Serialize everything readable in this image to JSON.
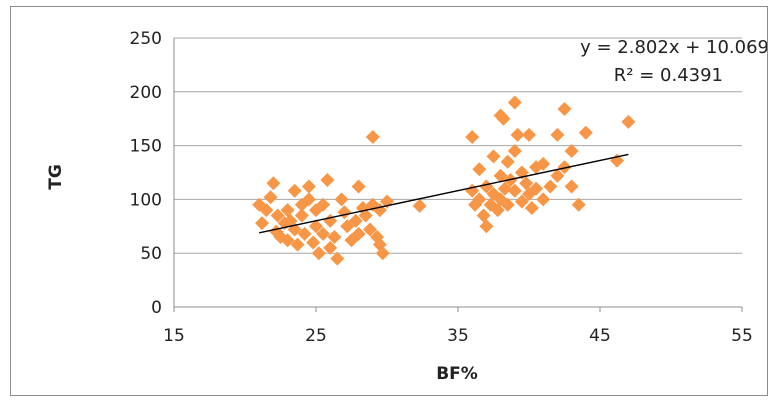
{
  "chart_data": {
    "type": "scatter",
    "xlabel": "BF%",
    "ylabel": "TG",
    "xlim": [
      15,
      55
    ],
    "ylim": [
      0,
      250
    ],
    "x_ticks": [
      "15",
      "25",
      "35",
      "45",
      "55"
    ],
    "y_ticks": [
      "0",
      "50",
      "100",
      "150",
      "200",
      "250"
    ],
    "grid": "horizontal",
    "marker_color": "#F79646",
    "trendline": {
      "slope": 2.802,
      "intercept": 10.069,
      "x_range": [
        21,
        47
      ],
      "equation": "y = 2.802x + 10.069",
      "r2": "R² = 0.4391",
      "color": "#000000"
    },
    "points": [
      [
        21,
        95
      ],
      [
        21.2,
        78
      ],
      [
        21.5,
        90
      ],
      [
        21.8,
        102
      ],
      [
        22,
        115
      ],
      [
        22.2,
        70
      ],
      [
        22.3,
        85
      ],
      [
        22.5,
        65
      ],
      [
        22.8,
        78
      ],
      [
        23,
        62
      ],
      [
        23,
        90
      ],
      [
        23.2,
        80
      ],
      [
        23.5,
        108
      ],
      [
        23.5,
        72
      ],
      [
        23.7,
        58
      ],
      [
        24,
        85
      ],
      [
        24,
        95
      ],
      [
        24.2,
        68
      ],
      [
        24.5,
        112
      ],
      [
        24.5,
        100
      ],
      [
        24.8,
        60
      ],
      [
        25,
        90
      ],
      [
        25,
        75
      ],
      [
        25.2,
        50
      ],
      [
        25.5,
        95
      ],
      [
        25.5,
        68
      ],
      [
        25.8,
        118
      ],
      [
        26,
        80
      ],
      [
        26,
        55
      ],
      [
        26.3,
        65
      ],
      [
        26.5,
        45
      ],
      [
        26.8,
        100
      ],
      [
        27,
        88
      ],
      [
        27.2,
        75
      ],
      [
        27.5,
        62
      ],
      [
        27.8,
        80
      ],
      [
        28,
        112
      ],
      [
        28,
        68
      ],
      [
        28.3,
        92
      ],
      [
        28.5,
        85
      ],
      [
        28.8,
        72
      ],
      [
        29,
        158
      ],
      [
        29,
        95
      ],
      [
        29.3,
        65
      ],
      [
        29.5,
        90
      ],
      [
        29.5,
        58
      ],
      [
        29.7,
        50
      ],
      [
        30,
        98
      ],
      [
        32.3,
        94
      ],
      [
        36,
        158
      ],
      [
        36,
        108
      ],
      [
        36.2,
        95
      ],
      [
        36.5,
        128
      ],
      [
        36.5,
        100
      ],
      [
        36.8,
        85
      ],
      [
        37,
        75
      ],
      [
        37,
        112
      ],
      [
        37.3,
        95
      ],
      [
        37.5,
        140
      ],
      [
        37.5,
        105
      ],
      [
        37.8,
        90
      ],
      [
        38,
        178
      ],
      [
        38,
        122
      ],
      [
        38,
        100
      ],
      [
        38.2,
        175
      ],
      [
        38.3,
        110
      ],
      [
        38.5,
        135
      ],
      [
        38.5,
        95
      ],
      [
        38.7,
        118
      ],
      [
        39,
        190
      ],
      [
        39,
        145
      ],
      [
        39,
        108
      ],
      [
        39.2,
        160
      ],
      [
        39.5,
        125
      ],
      [
        39.5,
        98
      ],
      [
        39.8,
        115
      ],
      [
        40,
        160
      ],
      [
        40,
        105
      ],
      [
        40.2,
        92
      ],
      [
        40.5,
        130
      ],
      [
        40.5,
        110
      ],
      [
        41,
        133
      ],
      [
        41,
        100
      ],
      [
        41.5,
        112
      ],
      [
        42,
        160
      ],
      [
        42,
        122
      ],
      [
        42.5,
        184
      ],
      [
        42.5,
        130
      ],
      [
        43,
        145
      ],
      [
        43,
        112
      ],
      [
        43.5,
        95
      ],
      [
        44,
        162
      ],
      [
        46.2,
        136
      ],
      [
        47,
        172
      ]
    ]
  }
}
